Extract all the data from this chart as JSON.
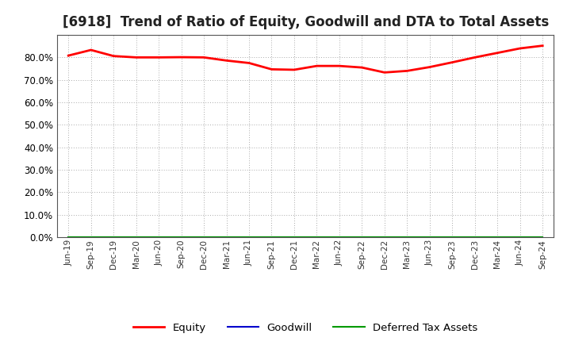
{
  "title": "[6918]  Trend of Ratio of Equity, Goodwill and DTA to Total Assets",
  "xlabels": [
    "Jun-19",
    "Sep-19",
    "Dec-19",
    "Mar-20",
    "Jun-20",
    "Sep-20",
    "Dec-20",
    "Mar-21",
    "Jun-21",
    "Sep-21",
    "Dec-21",
    "Mar-22",
    "Jun-22",
    "Sep-22",
    "Dec-22",
    "Mar-23",
    "Jun-23",
    "Sep-23",
    "Dec-23",
    "Mar-24",
    "Jun-24",
    "Sep-24"
  ],
  "equity": [
    0.808,
    0.833,
    0.806,
    0.8,
    0.8,
    0.801,
    0.8,
    0.786,
    0.775,
    0.747,
    0.745,
    0.762,
    0.762,
    0.755,
    0.733,
    0.74,
    0.757,
    0.778,
    0.8,
    0.82,
    0.84,
    0.852
  ],
  "goodwill": [
    0.0,
    0.0,
    0.0,
    0.0,
    0.0,
    0.0,
    0.0,
    0.0,
    0.0,
    0.0,
    0.0,
    0.0,
    0.0,
    0.0,
    0.0,
    0.0,
    0.0,
    0.0,
    0.0,
    0.0,
    0.0,
    0.0
  ],
  "dta": [
    0.0,
    0.0,
    0.0,
    0.0,
    0.0,
    0.0,
    0.0,
    0.0,
    0.0,
    0.0,
    0.0,
    0.0,
    0.0,
    0.0,
    0.0,
    0.0,
    0.0,
    0.0,
    0.0,
    0.0,
    0.0,
    0.0
  ],
  "equity_color": "#ff0000",
  "goodwill_color": "#0000cc",
  "dta_color": "#009900",
  "ylim": [
    0.0,
    0.9
  ],
  "yticks": [
    0.0,
    0.1,
    0.2,
    0.3,
    0.4,
    0.5,
    0.6,
    0.7,
    0.8
  ],
  "background_color": "#ffffff",
  "plot_bg_color": "#ffffff",
  "grid_color": "#aaaaaa",
  "title_fontsize": 12,
  "legend_labels": [
    "Equity",
    "Goodwill",
    "Deferred Tax Assets"
  ]
}
